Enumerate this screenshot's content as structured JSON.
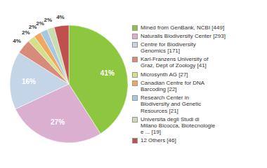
{
  "chart_data": {
    "type": "pie",
    "categories": [
      "Mined from GenBank, NCBI [449]",
      "Naturalis Biodiversity Center [293]",
      "Centre for Biodiversity\nGenomics [171]",
      "Karl-Franzens University of\nGraz, Dept of Zoology [41]",
      "Microsynth AG [27]",
      "Canadian Centre for DNA\nBarcoding [22]",
      "Research Center in\nBiodiversity and Genetic\nResources [21]",
      "Universita degli Studi di\nMilano Bicocca, Biotecnologie\ne ... [19]",
      "12 Others [46]"
    ],
    "values": [
      41,
      27,
      16,
      4,
      2,
      2,
      2,
      2,
      4
    ],
    "value_labels": [
      "41%",
      "27%",
      "16%",
      "4%",
      "2%",
      "2%",
      "2%",
      "2%",
      "4%"
    ],
    "colors": [
      "#8dc63f",
      "#dbafd0",
      "#c5d5e8",
      "#d88b7a",
      "#d4e08a",
      "#f0a860",
      "#a8c8e0",
      "#c8ddb0",
      "#c0504d"
    ],
    "data_labels": true,
    "legend": "right"
  }
}
